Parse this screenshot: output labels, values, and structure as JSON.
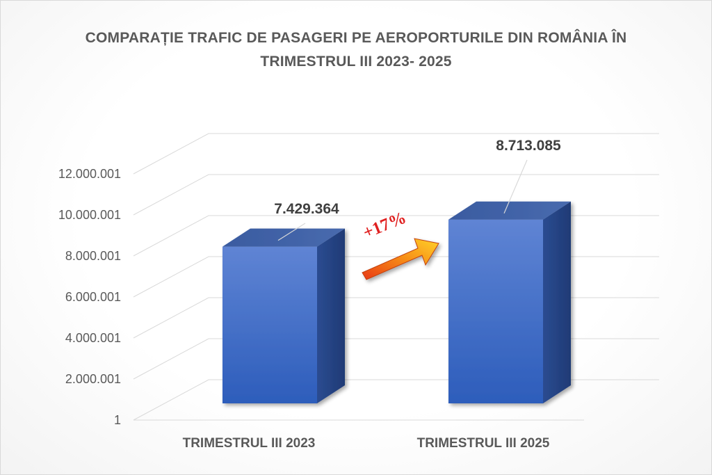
{
  "chart_data": {
    "type": "bar",
    "title_lines": [
      "COMPARAȚIE TRAFIC DE PASAGERI PE AEROPORTURILE DIN ROMÂNIA ÎN",
      "TRIMESTRUL III 2023- 2025"
    ],
    "categories": [
      "TRIMESTRUL III 2023",
      "TRIMESTRUL III 2025"
    ],
    "values": [
      7429364,
      8713085
    ],
    "data_labels": [
      "7.429.364",
      "8.713.085"
    ],
    "yticks": [
      1,
      2000001,
      4000001,
      6000001,
      8000001,
      10000001,
      12000001
    ],
    "ytick_labels": [
      "1",
      "2.000.001",
      "4.000.001",
      "6.000.001",
      "8.000.001",
      "10.000.001",
      "12.000.001"
    ],
    "ylim": [
      1,
      12000001
    ],
    "grid": true,
    "legend": "none",
    "style": "3d-column",
    "annotation": {
      "text": "+17%",
      "shape": "arrow"
    },
    "colors": {
      "bar_front_top": "#5b7fd0",
      "bar_front_bottom": "#2f5fbd",
      "bar_side": "#243f7a",
      "bar_top": "#3d5ea3",
      "grid": "#d9d9d9",
      "text": "#595959",
      "annotation": "#e02020"
    }
  }
}
